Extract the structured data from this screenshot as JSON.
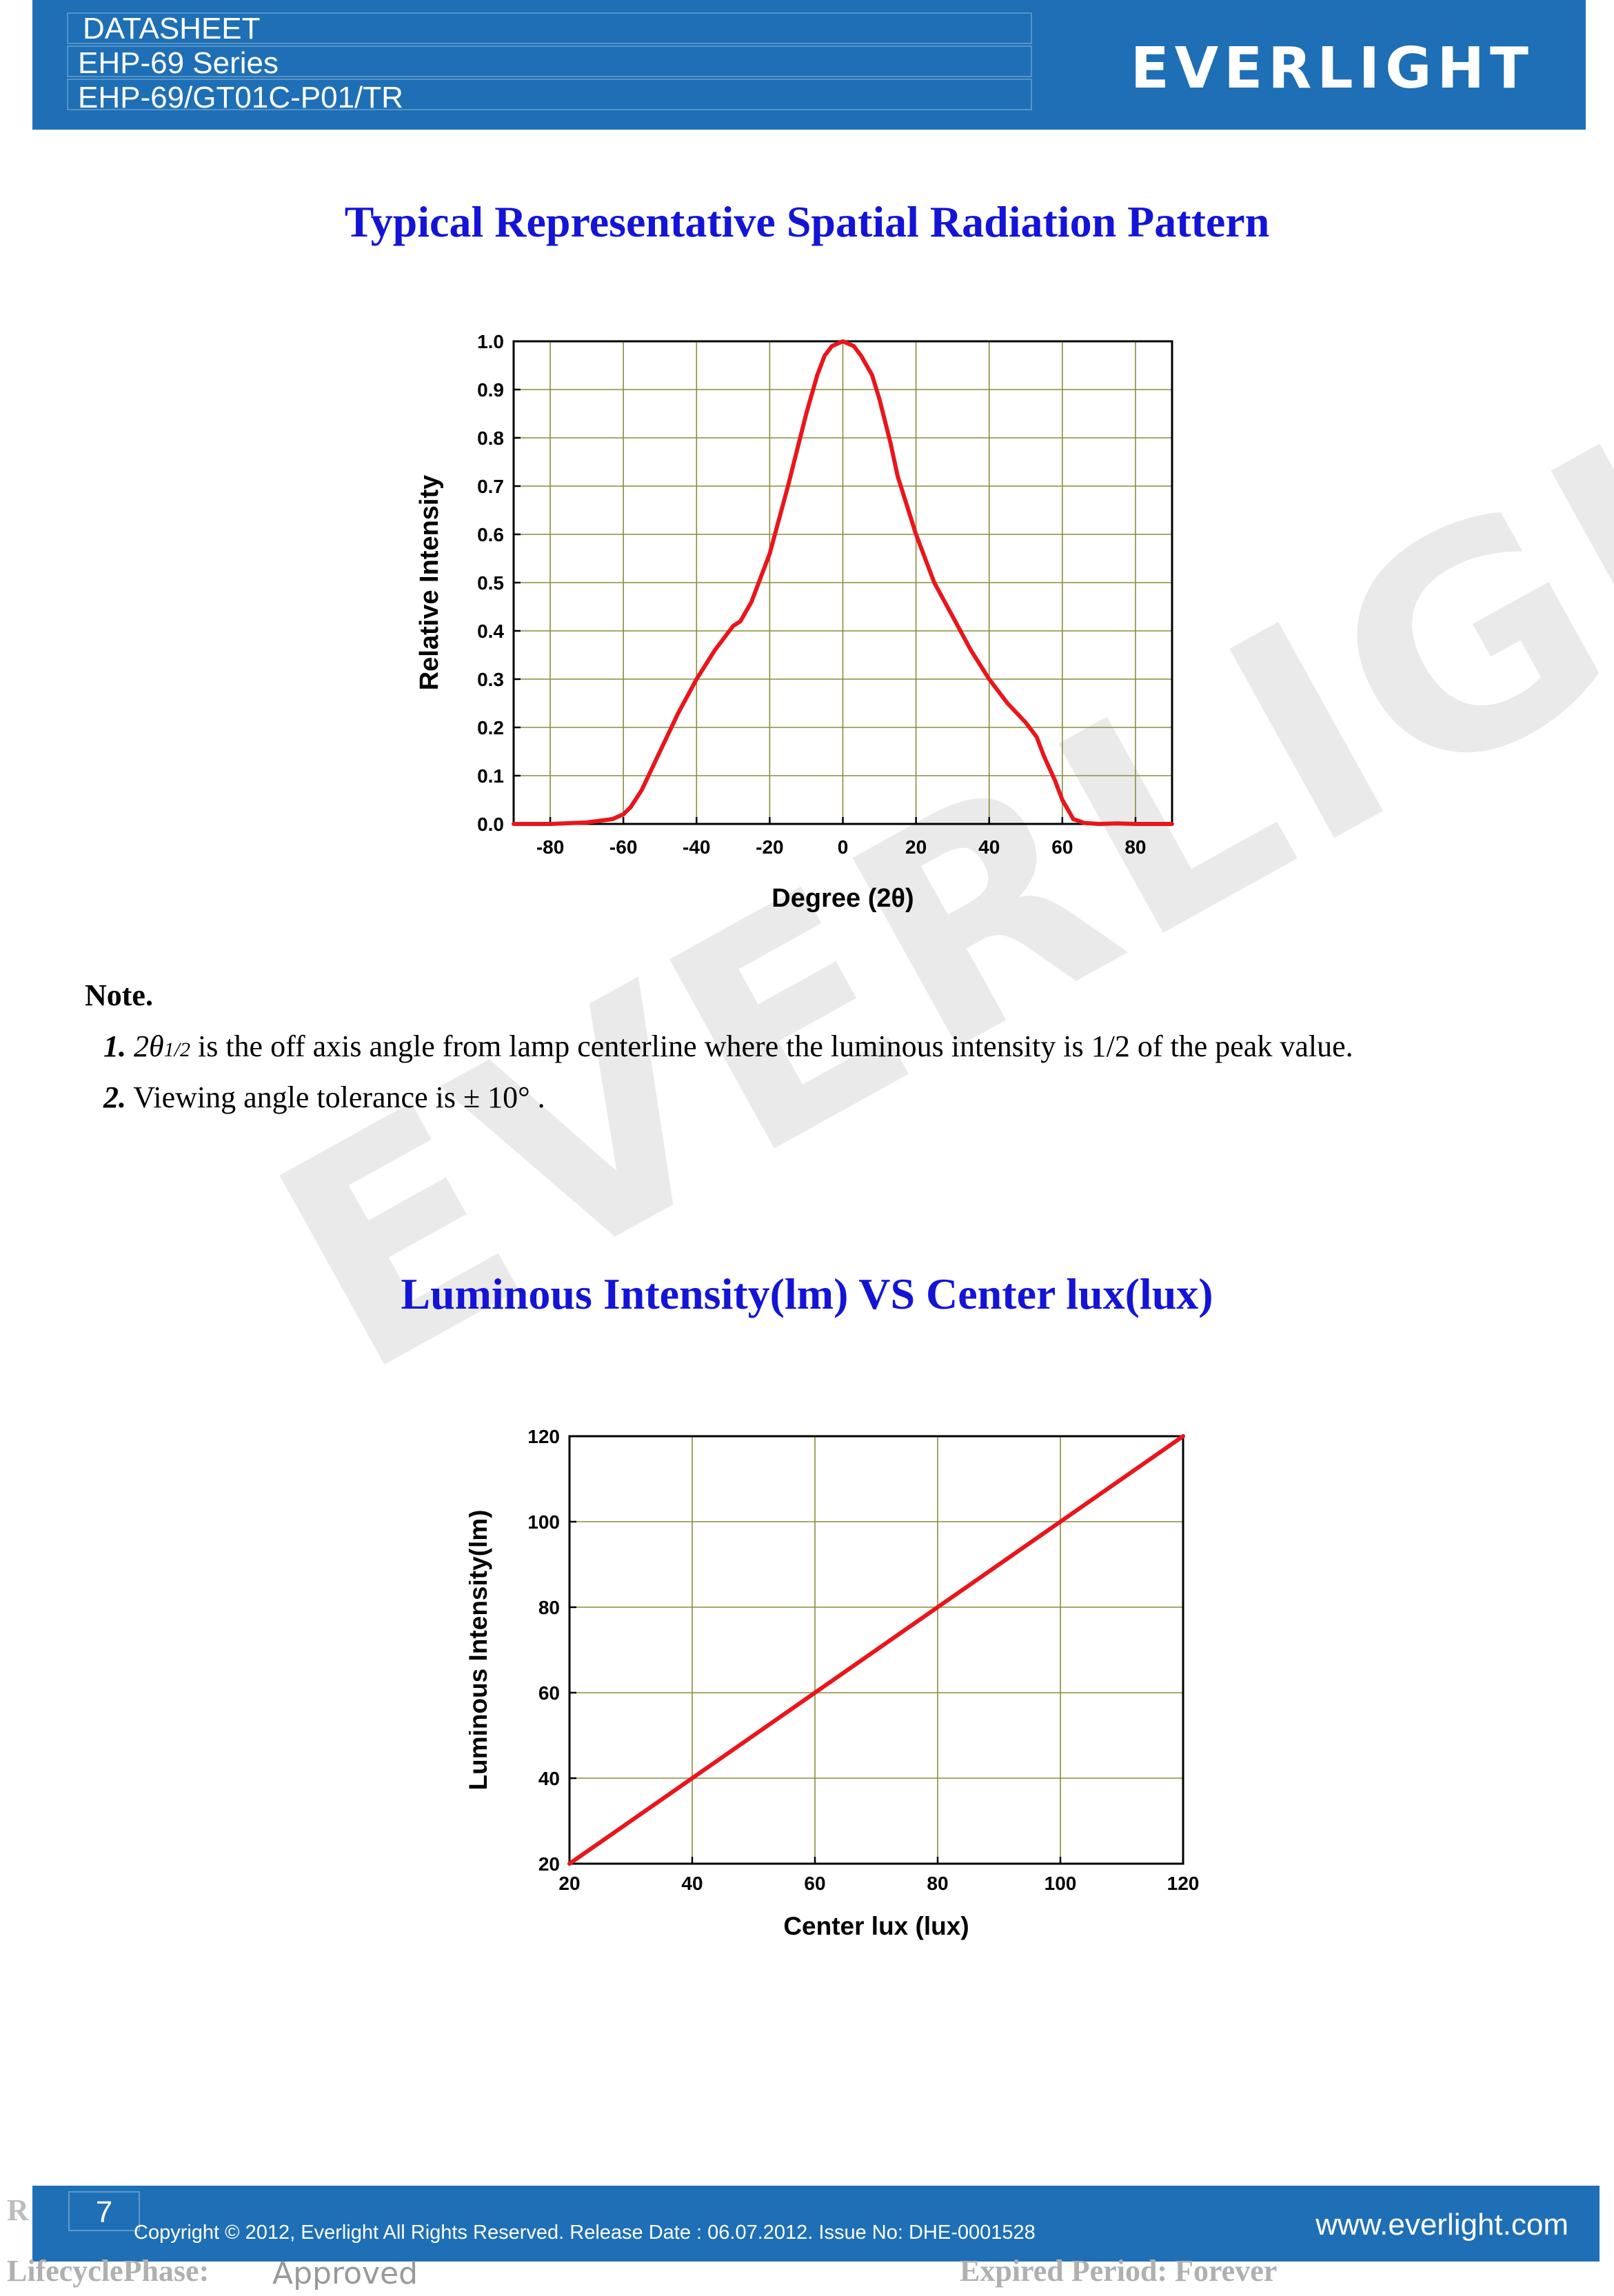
{
  "header": {
    "line1": "DATASHEET",
    "line2": "EHP-69 Series",
    "line3": "EHP-69/GT01C-P01/TR",
    "logo": "EVERLIGHT",
    "color": "#1E6FB5"
  },
  "watermark": "EVERLIGHT",
  "section1": {
    "title": "Typical Representative Spatial Radiation Pattern"
  },
  "notes": {
    "heading": "Note.",
    "item1_num": "1.",
    "item1_sym": "2θ",
    "item1_sub": "1/2",
    "item1_text": " is the off axis angle from lamp centerline where the luminous intensity is 1/2 of the peak value.",
    "item2_num": "2.",
    "item2_text": " Viewing angle tolerance is ± 10°  ."
  },
  "section2": {
    "title": "Luminous Intensity(lm) VS Center lux(lux)"
  },
  "chart_data": [
    {
      "type": "line",
      "title": "",
      "xlabel": "Degree (2θ)",
      "ylabel": "Relative Intensity",
      "xlim": [
        -90,
        90
      ],
      "ylim": [
        0,
        1.0
      ],
      "xticks": [
        "-80",
        "-60",
        "-40",
        "-20",
        "0",
        "20",
        "40",
        "60",
        "80"
      ],
      "yticks": [
        "0.0",
        "0.1",
        "0.2",
        "0.3",
        "0.4",
        "0.5",
        "0.6",
        "0.7",
        "0.8",
        "0.9",
        "1.0"
      ],
      "grid": true,
      "line_color": "#e8161c",
      "series": [
        {
          "x": [
            -90,
            -80,
            -70,
            -63,
            -60,
            -58,
            -55,
            -50,
            -45,
            -40,
            -35,
            -30,
            -28,
            -25,
            -20,
            -15,
            -10,
            -7,
            -5,
            -3,
            0,
            3,
            5,
            8,
            10,
            13,
            15,
            20,
            25,
            30,
            35,
            40,
            42,
            45,
            50,
            53,
            55,
            58,
            60,
            63,
            66,
            70,
            75,
            80,
            90
          ],
          "y": [
            0.0,
            0.0,
            0.003,
            0.01,
            0.02,
            0.035,
            0.07,
            0.15,
            0.23,
            0.3,
            0.36,
            0.41,
            0.42,
            0.46,
            0.56,
            0.7,
            0.85,
            0.93,
            0.97,
            0.99,
            1.0,
            0.99,
            0.97,
            0.93,
            0.88,
            0.79,
            0.72,
            0.6,
            0.5,
            0.43,
            0.36,
            0.3,
            0.28,
            0.25,
            0.21,
            0.18,
            0.14,
            0.09,
            0.05,
            0.01,
            0.002,
            0.0,
            0.001,
            0.0,
            0.0
          ]
        }
      ]
    },
    {
      "type": "line",
      "title": "",
      "xlabel": "Center lux (lux)",
      "ylabel": "Luminous Intensity(lm)",
      "xlim": [
        20,
        120
      ],
      "ylim": [
        20,
        120
      ],
      "xticks": [
        "20",
        "40",
        "60",
        "80",
        "100",
        "120"
      ],
      "yticks": [
        "20",
        "40",
        "60",
        "80",
        "100",
        "120"
      ],
      "grid": true,
      "line_color": "#e8161c",
      "series": [
        {
          "x": [
            20,
            120
          ],
          "y": [
            20,
            120
          ]
        }
      ]
    }
  ],
  "footer": {
    "page": "7",
    "copyright": "Copyright © 2012, Everlight All Rights Reserved. Release Date : 06.07.2012. Issue No: DHE-0001528",
    "website": "www.everlight.com",
    "meta_left1": "R",
    "meta_left2": "LifecyclePhase:",
    "meta_status": "Approved",
    "meta_right": "Expired Period: Forever"
  }
}
